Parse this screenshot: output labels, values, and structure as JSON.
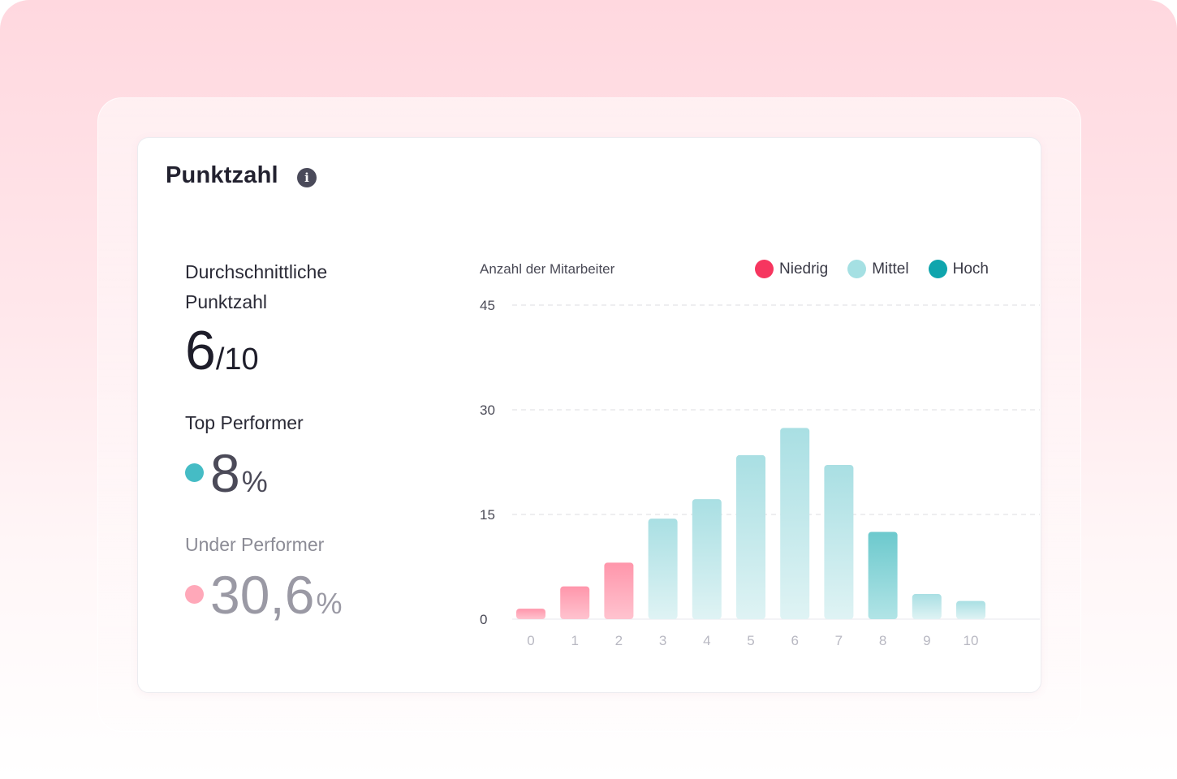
{
  "card": {
    "title": "Punktzahl",
    "info_icon": "info-icon"
  },
  "stats": {
    "average": {
      "label_line1": "Durchschnittliche",
      "label_line2": "Punktzahl",
      "value": "6",
      "suffix": "/10"
    },
    "top": {
      "label": "Top Performer",
      "value": "8",
      "suffix": "%",
      "dot_color": "#45bcc5"
    },
    "under": {
      "label": "Under Performer",
      "value": "30,6",
      "suffix": "%",
      "dot_color": "#ffa8b9"
    }
  },
  "legend": [
    {
      "label": "Niedrig",
      "color": "#f6365f"
    },
    {
      "label": "Mittel",
      "color": "#a5e0e3"
    },
    {
      "label": "Hoch",
      "color": "#0fa5ad"
    }
  ],
  "chart_data": {
    "type": "bar",
    "title": "",
    "ylabel": "Anzahl der Mitarbeiter",
    "xlabel": "",
    "categories": [
      "0",
      "1",
      "2",
      "3",
      "4",
      "5",
      "6",
      "7",
      "8",
      "9",
      "10"
    ],
    "values": [
      1.5,
      4.7,
      8.1,
      14.4,
      17.2,
      23.5,
      27.4,
      22.1,
      12.5,
      3.6,
      2.6
    ],
    "groups": [
      "Niedrig",
      "Niedrig",
      "Niedrig",
      "Mittel",
      "Mittel",
      "Mittel",
      "Mittel",
      "Mittel",
      "Hoch",
      "Mittel",
      "Mittel"
    ],
    "yticks": [
      0,
      15,
      30,
      45
    ],
    "ylim": [
      0,
      45
    ],
    "grid": true,
    "legend_position": "top-right"
  }
}
